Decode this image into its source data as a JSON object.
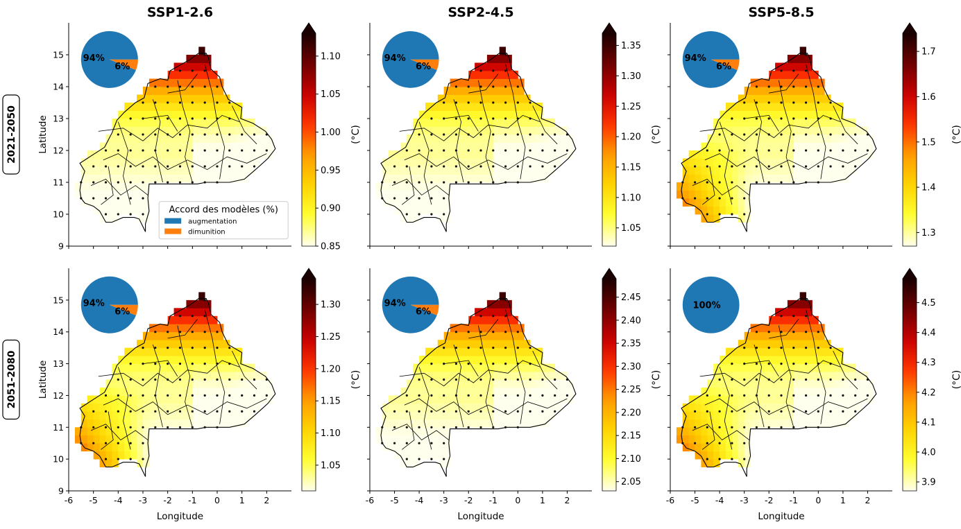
{
  "columns": [
    "SSP1-2.6",
    "SSP2-4.5",
    "SSP5-8.5"
  ],
  "rows": [
    "2021-2050",
    "2051-2080"
  ],
  "axes": {
    "xlabel": "Longitude",
    "ylabel": "Latitude",
    "xticks": [
      "-6",
      "-5",
      "-4",
      "-3",
      "-2",
      "-1",
      "0",
      "1",
      "2"
    ],
    "yticks": [
      "9",
      "10",
      "11",
      "12",
      "13",
      "14",
      "15"
    ],
    "xlim": [
      -6,
      3
    ],
    "ylim": [
      9,
      16
    ]
  },
  "colorbar_unit": "(°C)",
  "colormap": [
    "#ffffee",
    "#ffff33",
    "#ffd400",
    "#ff9d00",
    "#ff3300",
    "#c80000",
    "#6e0000",
    "#1a0000"
  ],
  "pie_colors": {
    "augmentation": "#1f77b4",
    "diminution": "#ff7f0e"
  },
  "legend": {
    "title": "Accord des modèles (%)",
    "items": [
      {
        "label": "augmentation",
        "color": "#1f77b4"
      },
      {
        "label": "dimunition",
        "color": "#ff7f0e"
      }
    ]
  },
  "panels": [
    {
      "row": "2021-2050",
      "column": "SSP1-2.6",
      "cbar_ticks": [
        "0.85",
        "0.90",
        "0.95",
        "1.00",
        "1.05",
        "1.10"
      ],
      "vmin": 0.85,
      "vmax": 1.13,
      "pie": {
        "augmentation": 94,
        "diminution": 6
      },
      "pie_labels": [
        "94%",
        "6%"
      ],
      "west_warm": false
    },
    {
      "row": "2021-2050",
      "column": "SSP2-4.5",
      "cbar_ticks": [
        "1.05",
        "1.10",
        "1.15",
        "1.20",
        "1.25",
        "1.30",
        "1.35"
      ],
      "vmin": 1.02,
      "vmax": 1.37,
      "pie": {
        "augmentation": 94,
        "diminution": 6
      },
      "pie_labels": [
        "94%",
        "6%"
      ],
      "west_warm": false
    },
    {
      "row": "2021-2050",
      "column": "SSP5-8.5",
      "cbar_ticks": [
        "1.3",
        "1.4",
        "1.5",
        "1.6",
        "1.7"
      ],
      "vmin": 1.27,
      "vmax": 1.74,
      "pie": {
        "augmentation": 94,
        "diminution": 6
      },
      "pie_labels": [
        "94%",
        "6%"
      ],
      "west_warm": true
    },
    {
      "row": "2051-2080",
      "column": "SSP1-2.6",
      "cbar_ticks": [
        "1.05",
        "1.10",
        "1.15",
        "1.20",
        "1.25",
        "1.30"
      ],
      "vmin": 1.01,
      "vmax": 1.34,
      "pie": {
        "augmentation": 94,
        "diminution": 6
      },
      "pie_labels": [
        "94%",
        "6%"
      ],
      "west_warm": true
    },
    {
      "row": "2051-2080",
      "column": "SSP2-4.5",
      "cbar_ticks": [
        "2.05",
        "2.10",
        "2.15",
        "2.20",
        "2.25",
        "2.30",
        "2.35",
        "2.40",
        "2.45"
      ],
      "vmin": 2.03,
      "vmax": 2.49,
      "pie": {
        "augmentation": 94,
        "diminution": 6
      },
      "pie_labels": [
        "94%",
        "6%"
      ],
      "west_warm": false
    },
    {
      "row": "2051-2080",
      "column": "SSP5-8.5",
      "cbar_ticks": [
        "3.9",
        "4.0",
        "4.1",
        "4.2",
        "4.3",
        "4.4",
        "4.5"
      ],
      "vmin": 3.87,
      "vmax": 4.58,
      "pie": {
        "augmentation": 100,
        "diminution": 0
      },
      "pie_labels": [
        "100%"
      ],
      "west_warm": true
    }
  ]
}
